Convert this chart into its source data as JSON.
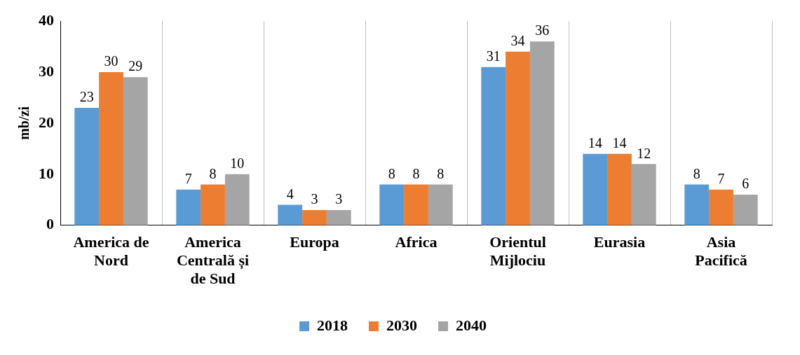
{
  "chart_data": {
    "type": "bar",
    "ylabel": "mb/zi",
    "categories": [
      "America de Nord",
      "America Centrală și de Sud",
      "Europa",
      "Africa",
      "Orientul Mijlociu",
      "Eurasia",
      "Asia Pacifică"
    ],
    "series": [
      {
        "name": "2018",
        "color": "#5b9bd5",
        "values": [
          23,
          7,
          4,
          8,
          31,
          14,
          8
        ]
      },
      {
        "name": "2030",
        "color": "#ed7d31",
        "values": [
          30,
          8,
          3,
          8,
          34,
          14,
          7
        ]
      },
      {
        "name": "2040",
        "color": "#a5a5a5",
        "values": [
          29,
          10,
          3,
          8,
          36,
          12,
          6
        ]
      }
    ],
    "ylim": [
      0,
      40
    ],
    "yticks": [
      0,
      10,
      20,
      30,
      40
    ],
    "grid": "x",
    "legend": "bottom",
    "data_labels": true
  }
}
